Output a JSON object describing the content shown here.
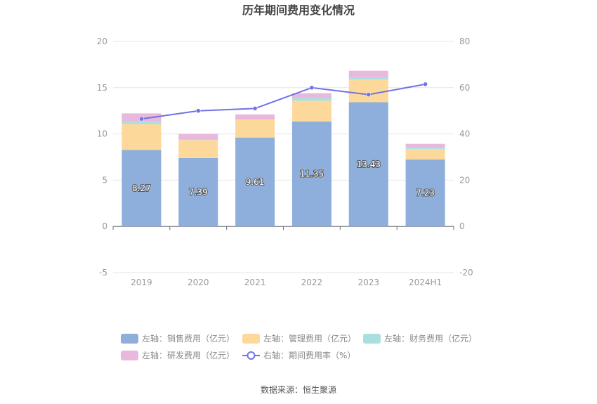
{
  "chart_data": {
    "type": "bar",
    "title": "历年期间费用变化情况",
    "categories": [
      "2019",
      "2020",
      "2021",
      "2022",
      "2023",
      "2024H1"
    ],
    "series": [
      {
        "name": "左轴：销售费用（亿元）",
        "axis": "left",
        "kind": "stacked-bar",
        "color": "#8eaedb",
        "values": [
          8.27,
          7.39,
          9.61,
          11.35,
          13.43,
          7.23
        ],
        "data_labels": [
          "8.27",
          "7.39",
          "9.61",
          "11.35",
          "13.43",
          "7.23"
        ]
      },
      {
        "name": "左轴：管理费用（亿元）",
        "axis": "left",
        "kind": "stacked-bar",
        "color": "#fdd89b",
        "values": [
          2.8,
          1.95,
          1.95,
          2.25,
          2.45,
          1.15
        ]
      },
      {
        "name": "左轴：财务费用（亿元）",
        "axis": "left",
        "kind": "stacked-bar",
        "color": "#a8e0e0",
        "values": [
          0.25,
          0.05,
          0.0,
          0.3,
          0.25,
          0.15
        ]
      },
      {
        "name": "左轴：研发费用（亿元）",
        "axis": "left",
        "kind": "stacked-bar",
        "color": "#e8b8dd",
        "values": [
          0.9,
          0.6,
          0.55,
          0.5,
          0.7,
          0.4
        ]
      },
      {
        "name": "右轴：期间费用率（%）",
        "axis": "right",
        "kind": "line",
        "color": "#6f73e6",
        "values": [
          46.5,
          50.0,
          51.0,
          60.0,
          57.0,
          61.5
        ]
      }
    ],
    "y_left": {
      "min": -5,
      "max": 20,
      "ticks": [
        "-5",
        "0",
        "5",
        "10",
        "15",
        "20"
      ]
    },
    "y_right": {
      "min": -20,
      "max": 80,
      "ticks": [
        "-20",
        "0",
        "20",
        "40",
        "60",
        "80"
      ]
    },
    "grid": true,
    "legend_position": "bottom"
  },
  "source": "数据来源：恒生聚源"
}
